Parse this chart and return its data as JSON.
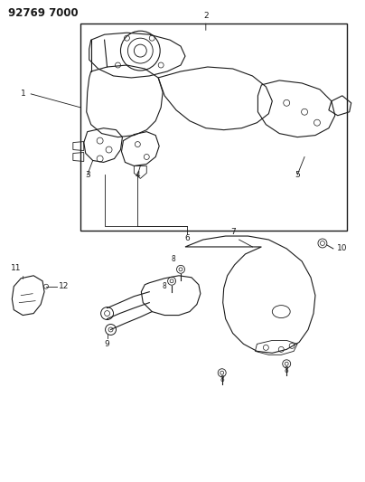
{
  "title_code": "92769 7000",
  "bg_color": "#ffffff",
  "line_color": "#1a1a1a",
  "title_fontsize": 8.5,
  "label_fontsize": 6.5,
  "fig_width": 4.04,
  "fig_height": 5.33,
  "dpi": 100
}
